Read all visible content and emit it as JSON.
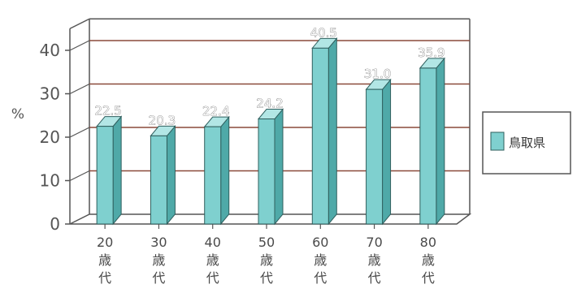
{
  "chart_data": {
    "type": "bar",
    "categories": [
      "20歳代",
      "30歳代",
      "40歳代",
      "50歳代",
      "60歳代",
      "70歳代",
      "80歳代"
    ],
    "category_lines": [
      [
        "20",
        "歳",
        "代"
      ],
      [
        "30",
        "歳",
        "代"
      ],
      [
        "40",
        "歳",
        "代"
      ],
      [
        "50",
        "歳",
        "代"
      ],
      [
        "60",
        "歳",
        "代"
      ],
      [
        "70",
        "歳",
        "代"
      ],
      [
        "80",
        "歳",
        "代"
      ]
    ],
    "series": [
      {
        "name": "鳥取県",
        "values": [
          22.5,
          20.3,
          22.4,
          24.2,
          40.5,
          31.0,
          35.9
        ],
        "labels": [
          "22.5",
          "20.3",
          "22.4",
          "24.2",
          "40.5",
          "31.0",
          "35.9"
        ]
      }
    ],
    "ylabel": "%",
    "ylim": [
      0,
      45
    ],
    "yticks": [
      0,
      10,
      20,
      30,
      40
    ],
    "grid": true,
    "legend_position": "right",
    "style": "3d-bar",
    "colors": {
      "bar_front": "#7fd0cf",
      "bar_side": "#4fa9a8",
      "bar_top": "#b2e6e5",
      "bar_stroke": "#2f5f5e",
      "grid": "#8a4a3a",
      "wall": "#555555"
    }
  }
}
